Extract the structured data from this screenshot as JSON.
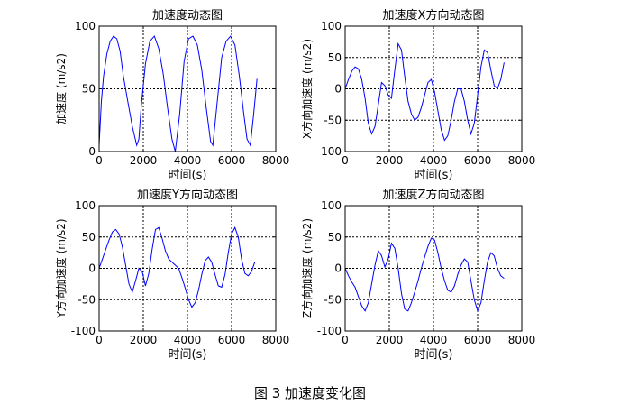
{
  "figure": {
    "caption": "图 3  加速度变化图"
  },
  "chart_data": [
    {
      "type": "line",
      "title": "加速度动态图",
      "xlabel": "时间(s)",
      "ylabel": "加速度 (m/s2)",
      "xlim": [
        0,
        8000
      ],
      "ylim": [
        0,
        100
      ],
      "xticks": [
        0,
        2000,
        4000,
        6000,
        8000
      ],
      "yticks": [
        0,
        50,
        100
      ],
      "grid": "dotted",
      "series": [
        {
          "color": "#0000ff",
          "x": [
            0,
            100,
            200,
            350,
            500,
            650,
            800,
            950,
            1100,
            1300,
            1500,
            1700,
            1800,
            1900,
            2100,
            2300,
            2500,
            2700,
            2900,
            3100,
            3300,
            3450,
            3650,
            3850,
            4050,
            4250,
            4450,
            4650,
            4850,
            5050,
            5150,
            5350,
            5550,
            5750,
            5950,
            6150,
            6350,
            6550,
            6700,
            6850,
            7000,
            7150
          ],
          "values": [
            5,
            40,
            60,
            78,
            88,
            92,
            90,
            80,
            60,
            40,
            20,
            5,
            10,
            35,
            70,
            88,
            92,
            82,
            62,
            35,
            10,
            0,
            30,
            72,
            90,
            92,
            85,
            65,
            35,
            8,
            5,
            40,
            75,
            88,
            92,
            85,
            60,
            30,
            10,
            5,
            30,
            58
          ]
        }
      ]
    },
    {
      "type": "line",
      "title": "加速度X方向动态图",
      "xlabel": "时间(s)",
      "ylabel": "X方向加速度 (m/s2)",
      "xlim": [
        0,
        8000
      ],
      "ylim": [
        -100,
        100
      ],
      "xticks": [
        0,
        2000,
        4000,
        6000,
        8000
      ],
      "yticks": [
        -100,
        -50,
        0,
        50,
        100
      ],
      "grid": "dotted",
      "series": [
        {
          "color": "#0000ff",
          "x": [
            0,
            150,
            300,
            450,
            600,
            750,
            900,
            1050,
            1200,
            1350,
            1500,
            1650,
            1800,
            1950,
            2100,
            2250,
            2400,
            2550,
            2700,
            2850,
            3000,
            3150,
            3300,
            3450,
            3600,
            3750,
            3900,
            4050,
            4200,
            4350,
            4500,
            4650,
            4800,
            4950,
            5100,
            5250,
            5400,
            5550,
            5700,
            5850,
            6000,
            6150,
            6300,
            6450,
            6600,
            6750,
            6900,
            7050,
            7200
          ],
          "values": [
            0,
            15,
            28,
            35,
            32,
            15,
            -15,
            -55,
            -72,
            -60,
            -25,
            10,
            5,
            -10,
            -15,
            30,
            72,
            62,
            20,
            -20,
            -40,
            -50,
            -45,
            -30,
            -10,
            10,
            15,
            -5,
            -35,
            -65,
            -82,
            -75,
            -50,
            -20,
            0,
            0,
            -20,
            -50,
            -72,
            -55,
            -10,
            35,
            62,
            58,
            30,
            5,
            0,
            15,
            42
          ]
        }
      ]
    },
    {
      "type": "line",
      "title": "加速度Y方向动态图",
      "xlabel": "时间(s)",
      "ylabel": "Y方向加速度 (m/s2)",
      "xlim": [
        0,
        8000
      ],
      "ylim": [
        -100,
        100
      ],
      "xticks": [
        0,
        2000,
        4000,
        6000,
        8000
      ],
      "yticks": [
        -100,
        -50,
        0,
        50,
        100
      ],
      "grid": "dotted",
      "series": [
        {
          "color": "#0000ff",
          "x": [
            0,
            150,
            300,
            450,
            600,
            750,
            900,
            1050,
            1200,
            1350,
            1500,
            1650,
            1800,
            1950,
            2100,
            2250,
            2400,
            2550,
            2700,
            2850,
            3000,
            3150,
            3300,
            3450,
            3600,
            3750,
            3900,
            4050,
            4200,
            4350,
            4500,
            4650,
            4800,
            4950,
            5100,
            5250,
            5400,
            5550,
            5700,
            5850,
            6000,
            6150,
            6300,
            6450,
            6600,
            6750,
            6900,
            7050
          ],
          "values": [
            0,
            15,
            30,
            45,
            58,
            62,
            55,
            35,
            5,
            -25,
            -38,
            -20,
            0,
            -5,
            -28,
            -8,
            30,
            62,
            65,
            48,
            28,
            15,
            10,
            5,
            0,
            -15,
            -32,
            -50,
            -62,
            -55,
            -35,
            -10,
            12,
            18,
            10,
            -10,
            -28,
            -30,
            -10,
            25,
            55,
            65,
            50,
            15,
            -8,
            -12,
            -5,
            10
          ]
        }
      ]
    },
    {
      "type": "line",
      "title": "加速度Z方向动态图",
      "xlabel": "时间(s)",
      "ylabel": "Z方向加速度 (m/s2)",
      "xlim": [
        0,
        8000
      ],
      "ylim": [
        -100,
        100
      ],
      "xticks": [
        0,
        2000,
        4000,
        6000,
        8000
      ],
      "yticks": [
        -100,
        -50,
        0,
        50,
        100
      ],
      "grid": "dotted",
      "series": [
        {
          "color": "#0000ff",
          "x": [
            0,
            150,
            300,
            450,
            600,
            750,
            900,
            1050,
            1200,
            1350,
            1500,
            1650,
            1800,
            1950,
            2100,
            2250,
            2400,
            2550,
            2700,
            2850,
            3000,
            3150,
            3300,
            3450,
            3600,
            3750,
            3900,
            4050,
            4200,
            4350,
            4500,
            4650,
            4800,
            4950,
            5100,
            5250,
            5400,
            5550,
            5700,
            5850,
            6000,
            6150,
            6300,
            6450,
            6600,
            6750,
            6900,
            7050,
            7200
          ],
          "values": [
            0,
            -12,
            -22,
            -30,
            -45,
            -60,
            -68,
            -55,
            -25,
            5,
            28,
            20,
            2,
            15,
            40,
            32,
            0,
            -40,
            -65,
            -68,
            -55,
            -38,
            -20,
            0,
            18,
            35,
            48,
            45,
            25,
            0,
            -20,
            -35,
            -38,
            -28,
            -10,
            5,
            15,
            10,
            -20,
            -50,
            -68,
            -55,
            -20,
            10,
            25,
            20,
            0,
            -12,
            -16
          ]
        }
      ]
    }
  ]
}
